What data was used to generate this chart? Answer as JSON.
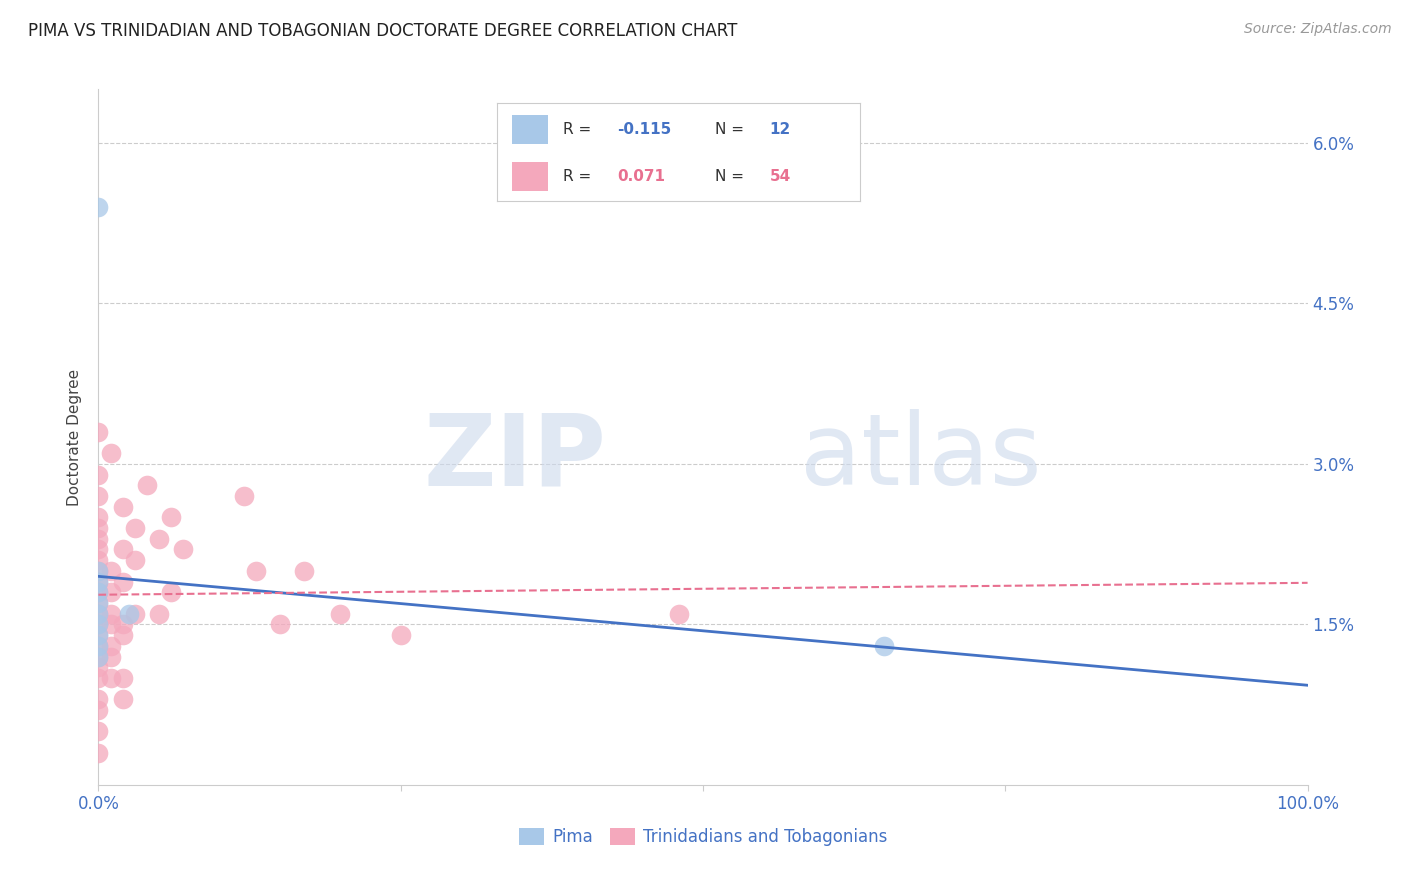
{
  "title": "PIMA VS TRINIDADIAN AND TOBAGONIAN DOCTORATE DEGREE CORRELATION CHART",
  "source": "Source: ZipAtlas.com",
  "ylabel": "Doctorate Degree",
  "xlim": [
    0.0,
    1.0
  ],
  "ylim": [
    0.0,
    0.065
  ],
  "yticks": [
    0.015,
    0.03,
    0.045,
    0.06
  ],
  "ytick_labels": [
    "1.5%",
    "3.0%",
    "4.5%",
    "6.0%"
  ],
  "xticks": [
    0.0,
    0.25,
    0.5,
    0.75,
    1.0
  ],
  "xtick_labels": [
    "0.0%",
    "",
    "",
    "",
    "100.0%"
  ],
  "pima_R": -0.115,
  "pima_N": 12,
  "tnt_R": 0.071,
  "tnt_N": 54,
  "bg_color": "#ffffff",
  "grid_color": "#cccccc",
  "pima_color": "#a8c8e8",
  "tnt_color": "#f4a8bc",
  "pima_line_color": "#4472c4",
  "tnt_line_color": "#e87090",
  "pima_scatter": [
    [
      0.0,
      0.054
    ],
    [
      0.0,
      0.02
    ],
    [
      0.0,
      0.019
    ],
    [
      0.0,
      0.018
    ],
    [
      0.0,
      0.017
    ],
    [
      0.0,
      0.016
    ],
    [
      0.0,
      0.015
    ],
    [
      0.0,
      0.014
    ],
    [
      0.0,
      0.013
    ],
    [
      0.0,
      0.012
    ],
    [
      0.025,
      0.016
    ],
    [
      0.65,
      0.013
    ]
  ],
  "tnt_scatter": [
    [
      0.0,
      0.033
    ],
    [
      0.0,
      0.029
    ],
    [
      0.0,
      0.027
    ],
    [
      0.0,
      0.025
    ],
    [
      0.0,
      0.024
    ],
    [
      0.0,
      0.023
    ],
    [
      0.0,
      0.022
    ],
    [
      0.0,
      0.021
    ],
    [
      0.0,
      0.02
    ],
    [
      0.0,
      0.019
    ],
    [
      0.0,
      0.018
    ],
    [
      0.0,
      0.017
    ],
    [
      0.0,
      0.016
    ],
    [
      0.0,
      0.015
    ],
    [
      0.0,
      0.014
    ],
    [
      0.0,
      0.013
    ],
    [
      0.0,
      0.012
    ],
    [
      0.0,
      0.011
    ],
    [
      0.0,
      0.01
    ],
    [
      0.0,
      0.008
    ],
    [
      0.0,
      0.007
    ],
    [
      0.0,
      0.005
    ],
    [
      0.0,
      0.003
    ],
    [
      0.01,
      0.031
    ],
    [
      0.01,
      0.02
    ],
    [
      0.01,
      0.018
    ],
    [
      0.01,
      0.016
    ],
    [
      0.01,
      0.015
    ],
    [
      0.01,
      0.013
    ],
    [
      0.01,
      0.012
    ],
    [
      0.01,
      0.01
    ],
    [
      0.02,
      0.026
    ],
    [
      0.02,
      0.022
    ],
    [
      0.02,
      0.019
    ],
    [
      0.02,
      0.015
    ],
    [
      0.02,
      0.014
    ],
    [
      0.02,
      0.01
    ],
    [
      0.02,
      0.008
    ],
    [
      0.03,
      0.024
    ],
    [
      0.03,
      0.021
    ],
    [
      0.03,
      0.016
    ],
    [
      0.04,
      0.028
    ],
    [
      0.05,
      0.023
    ],
    [
      0.05,
      0.016
    ],
    [
      0.06,
      0.025
    ],
    [
      0.06,
      0.018
    ],
    [
      0.07,
      0.022
    ],
    [
      0.12,
      0.027
    ],
    [
      0.13,
      0.02
    ],
    [
      0.15,
      0.015
    ],
    [
      0.17,
      0.02
    ],
    [
      0.2,
      0.016
    ],
    [
      0.25,
      0.014
    ],
    [
      0.48,
      0.016
    ]
  ]
}
